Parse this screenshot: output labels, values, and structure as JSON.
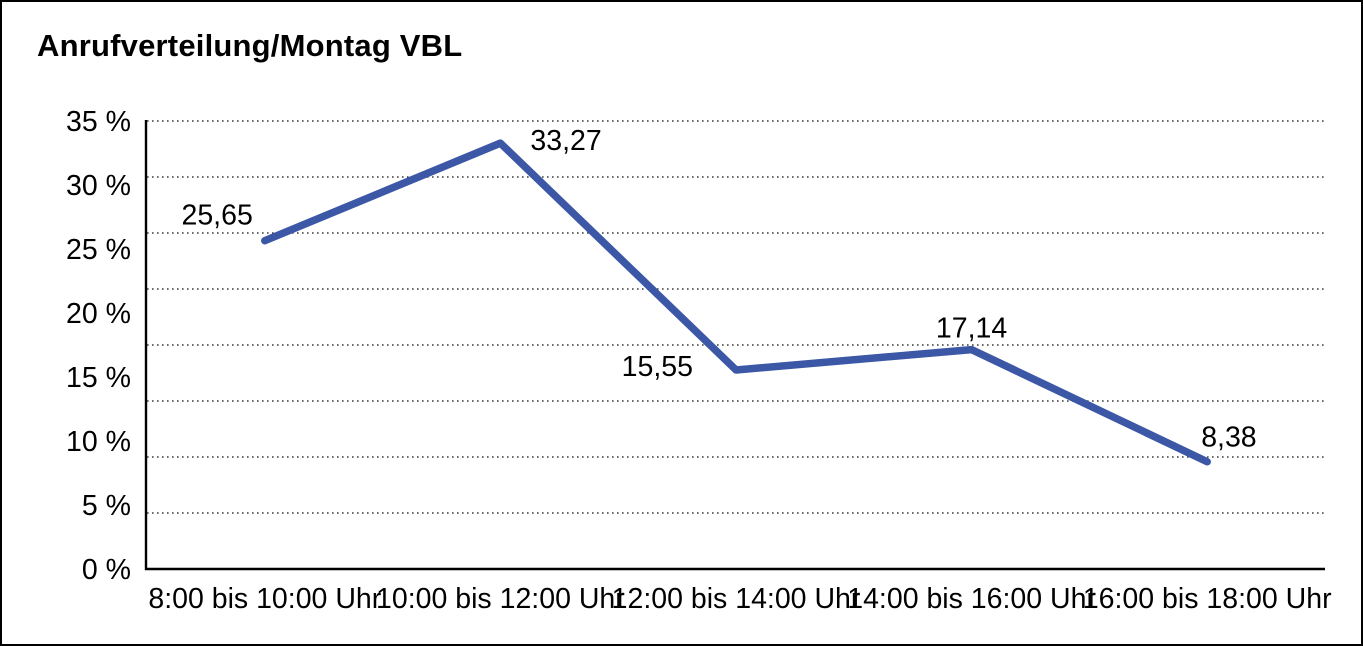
{
  "title": "Anrufverteilung/Montag VBL",
  "chart_data": {
    "type": "line",
    "title": "Anrufverteilung/Montag VBL",
    "categories": [
      "8:00 bis 10:00 Uhr",
      "10:00 bis 12:00 Uhr",
      "12:00 bis 14:00 Uhr",
      "14:00 bis 16:00 Uhr",
      "16:00 bis 18:00 Uhr"
    ],
    "values": [
      25.65,
      33.27,
      15.55,
      17.14,
      8.38
    ],
    "point_labels": [
      "25,65",
      "33,27",
      "15,55",
      "17,14",
      "8,38"
    ],
    "series_name": "Anrufverteilung Montag VBL",
    "xlabel": "",
    "ylabel": "",
    "y_tick_labels": [
      "35 %",
      "30 %",
      "25 %",
      "20 %",
      "15 %",
      "10 %",
      "5 %",
      "0 %"
    ],
    "ylim": [
      0,
      35
    ],
    "y_unit": "%",
    "grid": "horizontal-dotted",
    "legend_position": "none",
    "line_color": "#3B57A6",
    "axis_color": "#000000",
    "gridline_color": "#3c3c3c",
    "background_color": "#ffffff"
  }
}
